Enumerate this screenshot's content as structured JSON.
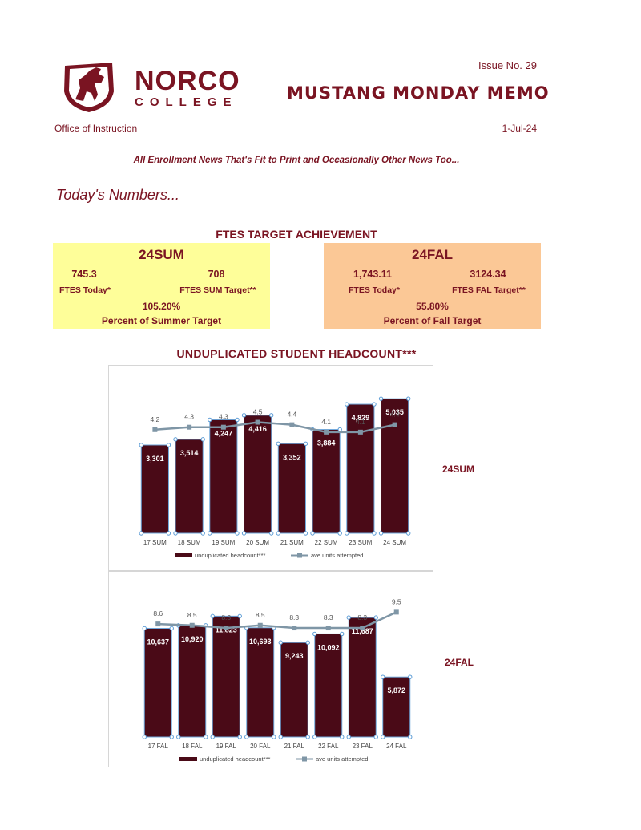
{
  "header": {
    "logo_name": "NORCO",
    "logo_sub": "COLLEGE",
    "issue": "Issue No. 29",
    "title": "MUSTANG MONDAY MEMO",
    "office": "Office of Instruction",
    "date": "1-Jul-24",
    "tagline": "All Enrollment News That's Fit to Print and Occasionally Other News Too...",
    "section": "Today's Numbers..."
  },
  "ftes": {
    "heading": "FTES TARGET ACHIEVEMENT",
    "summer": {
      "term": "24SUM",
      "today_value": "745.3",
      "target_value": "708",
      "today_label": "FTES Today*",
      "target_label": "FTES SUM Target**",
      "percent": "105.20%",
      "percent_label": "Percent of Summer Target"
    },
    "fall": {
      "term": "24FAL",
      "today_value": "1,743.11",
      "target_value": "3124.34",
      "today_label": "FTES Today*",
      "target_label": "FTES FAL Target**",
      "percent": "55.80%",
      "percent_label": "Percent of Fall Target"
    }
  },
  "headcount": {
    "heading": "UNDUPLICATED STUDENT HEADCOUNT***",
    "summer_term": "24SUM",
    "fall_term": "24FAL"
  },
  "colors": {
    "brand": "#7a1422",
    "bar": "#4a0a17",
    "line": "#7f96a6",
    "summer_box": "#fefe99",
    "fall_box": "#fbc896"
  },
  "chart_data": [
    {
      "type": "bar",
      "categories": [
        "17 SUM",
        "18 SUM",
        "19 SUM",
        "20 SUM",
        "21 SUM",
        "22 SUM",
        "23 SUM",
        "24 SUM"
      ],
      "series": [
        {
          "name": "unduplicated headcount***",
          "type": "bar",
          "values": [
            3301,
            3514,
            4247,
            4416,
            3352,
            3884,
            4829,
            5035
          ],
          "labels": [
            "3,301",
            "3,514",
            "4,247",
            "4,416",
            "3,352",
            "3,884",
            "4,829",
            "5,035"
          ]
        },
        {
          "name": "ave units attempted",
          "type": "line",
          "values": [
            4.2,
            4.3,
            4.3,
            4.5,
            4.4,
            4.1,
            4.1,
            4.4
          ],
          "labels": [
            "4.2",
            "4.3",
            "4.3",
            "4.5",
            "4.4",
            "4.1",
            "4.1",
            "4.4"
          ]
        }
      ],
      "ylim_bar": [
        0,
        6000
      ],
      "ylim_line": [
        0,
        6.5
      ],
      "legend": "bottom",
      "grid": false
    },
    {
      "type": "bar",
      "categories": [
        "17 FAL",
        "18 FAL",
        "19 FAL",
        "20 FAL",
        "21 FAL",
        "22 FAL",
        "23 FAL",
        "24 FAL"
      ],
      "series": [
        {
          "name": "unduplicated headcount***",
          "type": "bar",
          "values": [
            10637,
            10920,
            11823,
            10693,
            9243,
            10092,
            11687,
            5872
          ],
          "labels": [
            "10,637",
            "10,920",
            "11,823",
            "10,693",
            "9,243",
            "10,092",
            "11,687",
            "5,872"
          ]
        },
        {
          "name": "ave units attempted",
          "type": "line",
          "values": [
            8.6,
            8.5,
            8.3,
            8.5,
            8.3,
            8.3,
            8.3,
            9.5
          ],
          "labels": [
            "8.6",
            "8.5",
            "8.3",
            "8.5",
            "8.3",
            "8.3",
            "8.3",
            "9.5"
          ]
        }
      ],
      "ylim_bar": [
        0,
        13500
      ],
      "ylim_line": [
        0,
        10.5
      ],
      "legend": "bottom",
      "grid": false
    }
  ]
}
